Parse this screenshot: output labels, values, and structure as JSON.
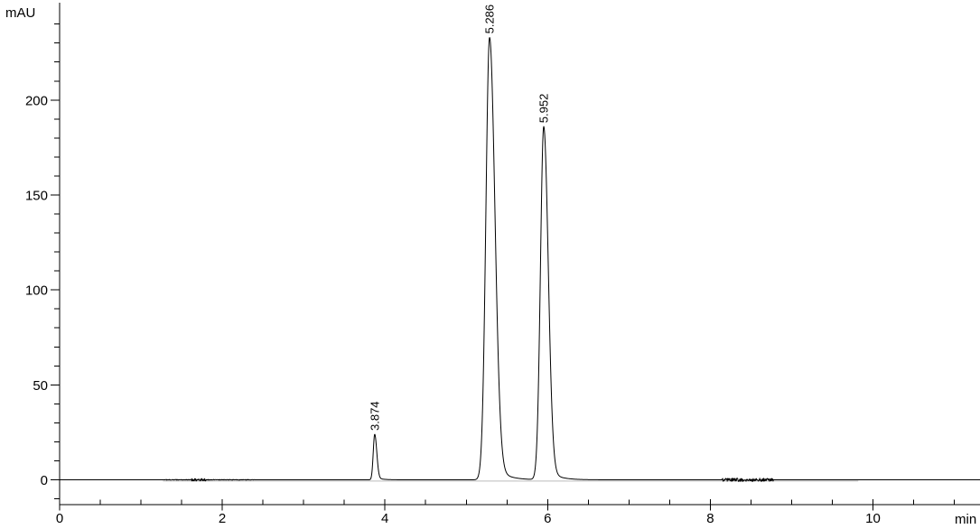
{
  "window": {
    "background_color": "#ffffff"
  },
  "chart_data": {
    "type": "line",
    "kind": "chromatogram",
    "title": "",
    "ylabel": "mAU",
    "xlabel": "min",
    "line_color": "#000000",
    "shadow_trace_color": "#c9c9c9",
    "x_range_min": [
      0,
      11.32
    ],
    "y_range_mAU": [
      -13,
      251
    ],
    "x_major_ticks": [
      0,
      2,
      4,
      6,
      8,
      10
    ],
    "x_minor_step_min": 0.5,
    "y_major_ticks": [
      0,
      50,
      100,
      150,
      200
    ],
    "y_minor_step_mAU": 10,
    "grid": false,
    "legend": false,
    "baseline_mAU": 0,
    "peaks": [
      {
        "label": "3.874",
        "rt_min": 3.874,
        "height_mAU": 24,
        "sigma_left_min": 0.018,
        "sigma_right_min": 0.025,
        "tail_height_mAU": 1.5,
        "tail_tau_min": 0.07
      },
      {
        "label": "5.286",
        "rt_min": 5.286,
        "height_mAU": 233,
        "sigma_left_min": 0.045,
        "sigma_right_min": 0.065,
        "tail_height_mAU": 12,
        "tail_tau_min": 0.13
      },
      {
        "label": "5.952",
        "rt_min": 5.952,
        "height_mAU": 186,
        "sigma_left_min": 0.04,
        "sigma_right_min": 0.055,
        "tail_height_mAU": 8,
        "tail_tau_min": 0.12
      }
    ],
    "noise_segments": [
      {
        "from_min": 1.3,
        "to_min": 2.4,
        "amp_mAU": 0.18
      },
      {
        "from_min": 1.62,
        "to_min": 1.8,
        "amp_mAU": 0.45
      },
      {
        "from_min": 8.14,
        "to_min": 8.78,
        "amp_mAU": 0.85
      }
    ],
    "shadow_trace": {
      "from_min": 1.27,
      "to_min": 9.82,
      "offset_mAU": -0.65
    }
  }
}
